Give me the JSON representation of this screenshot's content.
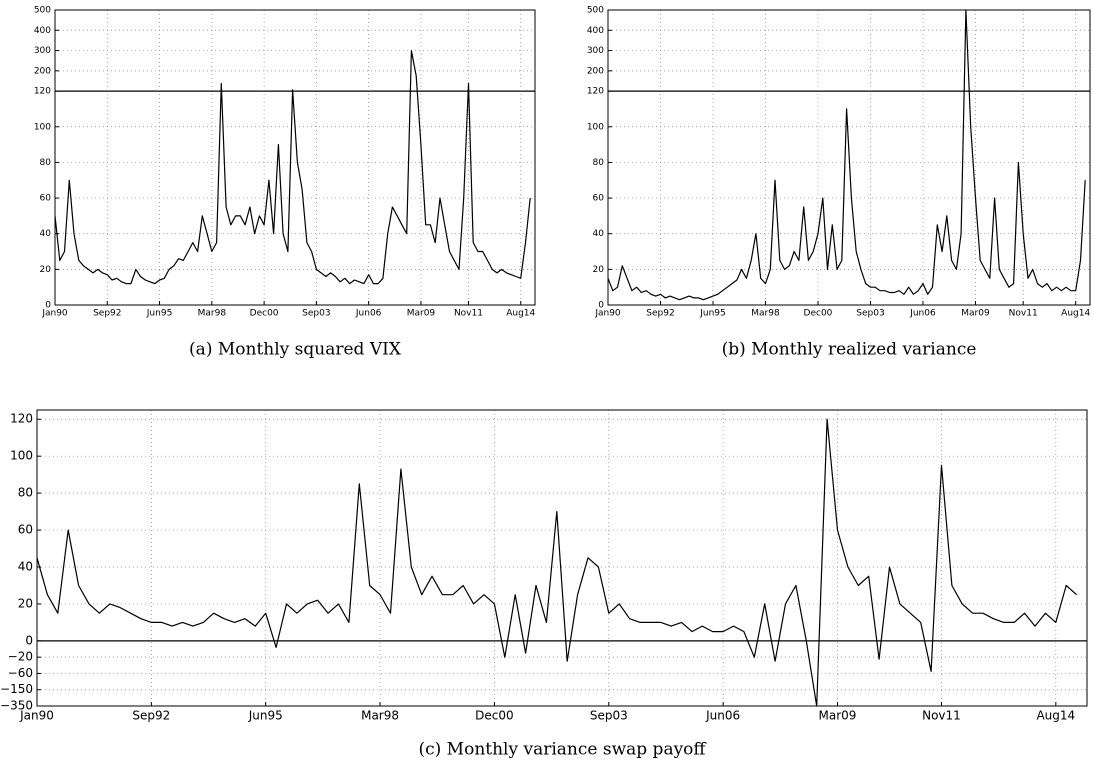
{
  "chart_data": [
    {
      "type": "line",
      "title": "(a) Monthly squared VIX",
      "color": "#000000",
      "grid": true,
      "categories": [
        "Jan90",
        null,
        null,
        null,
        null,
        null,
        null,
        null,
        null,
        null,
        null,
        "Sep92",
        null,
        null,
        null,
        null,
        null,
        null,
        null,
        null,
        null,
        null,
        "Jun95",
        null,
        null,
        null,
        null,
        null,
        null,
        null,
        null,
        null,
        null,
        "Mar98",
        null,
        null,
        null,
        null,
        null,
        null,
        null,
        null,
        null,
        null,
        "Dec00",
        null,
        null,
        null,
        null,
        null,
        null,
        null,
        null,
        null,
        null,
        "Sep03",
        null,
        null,
        null,
        null,
        null,
        null,
        null,
        null,
        null,
        null,
        "Jun06",
        null,
        null,
        null,
        null,
        null,
        null,
        null,
        null,
        null,
        null,
        "Mar09",
        null,
        null,
        null,
        null,
        null,
        null,
        null,
        null,
        null,
        "Nov11",
        null,
        null,
        null,
        null,
        null,
        null,
        null,
        null,
        null,
        null,
        "Aug14",
        null,
        null
      ],
      "values": [
        50,
        25,
        30,
        70,
        40,
        25,
        22,
        20,
        18,
        20,
        18,
        17,
        14,
        15,
        13,
        12,
        12,
        20,
        16,
        14,
        13,
        12,
        14,
        15,
        20,
        22,
        26,
        25,
        30,
        35,
        30,
        50,
        40,
        30,
        35,
        150,
        55,
        45,
        50,
        50,
        45,
        55,
        40,
        50,
        45,
        70,
        40,
        90,
        40,
        30,
        125,
        80,
        65,
        35,
        30,
        20,
        18,
        16,
        18,
        16,
        13,
        15,
        12,
        14,
        13,
        12,
        17,
        12,
        12,
        15,
        40,
        55,
        50,
        45,
        40,
        300,
        180,
        90,
        45,
        45,
        35,
        60,
        45,
        30,
        25,
        20,
        60,
        150,
        35,
        30,
        30,
        25,
        20,
        18,
        20,
        18,
        17,
        16,
        15,
        35,
        60
      ],
      "ylim": [
        0,
        500
      ],
      "yticks": [
        0,
        20,
        40,
        60,
        80,
        100,
        120,
        200,
        300,
        400,
        500
      ],
      "ybreak": 120
    },
    {
      "type": "line",
      "title": "(b) Monthly realized variance",
      "color": "#000000",
      "grid": true,
      "categories": [
        "Jan90",
        null,
        null,
        null,
        null,
        null,
        null,
        null,
        null,
        null,
        null,
        "Sep92",
        null,
        null,
        null,
        null,
        null,
        null,
        null,
        null,
        null,
        null,
        "Jun95",
        null,
        null,
        null,
        null,
        null,
        null,
        null,
        null,
        null,
        null,
        "Mar98",
        null,
        null,
        null,
        null,
        null,
        null,
        null,
        null,
        null,
        null,
        "Dec00",
        null,
        null,
        null,
        null,
        null,
        null,
        null,
        null,
        null,
        null,
        "Sep03",
        null,
        null,
        null,
        null,
        null,
        null,
        null,
        null,
        null,
        null,
        "Jun06",
        null,
        null,
        null,
        null,
        null,
        null,
        null,
        null,
        null,
        null,
        "Mar09",
        null,
        null,
        null,
        null,
        null,
        null,
        null,
        null,
        null,
        "Nov11",
        null,
        null,
        null,
        null,
        null,
        null,
        null,
        null,
        null,
        null,
        "Aug14",
        null,
        null
      ],
      "values": [
        15,
        8,
        10,
        22,
        15,
        8,
        10,
        7,
        8,
        6,
        5,
        6,
        4,
        5,
        4,
        3,
        4,
        5,
        4,
        4,
        3,
        4,
        5,
        6,
        8,
        10,
        12,
        14,
        20,
        15,
        25,
        40,
        15,
        12,
        20,
        70,
        25,
        20,
        22,
        30,
        25,
        55,
        25,
        30,
        40,
        60,
        20,
        45,
        20,
        25,
        110,
        60,
        30,
        20,
        12,
        10,
        10,
        8,
        8,
        7,
        7,
        8,
        6,
        10,
        6,
        8,
        12,
        6,
        10,
        45,
        30,
        50,
        25,
        20,
        40,
        500,
        100,
        60,
        25,
        20,
        15,
        60,
        20,
        15,
        10,
        12,
        80,
        40,
        15,
        20,
        12,
        10,
        12,
        8,
        10,
        8,
        10,
        8,
        8,
        25,
        70
      ],
      "ylim": [
        0,
        500
      ],
      "yticks": [
        0,
        20,
        40,
        60,
        80,
        100,
        120,
        200,
        300,
        400,
        500
      ],
      "ybreak": 120
    },
    {
      "type": "line",
      "title": "(c) Monthly variance swap payoff",
      "color": "#000000",
      "grid": true,
      "categories": [
        "Jan90",
        null,
        null,
        null,
        null,
        null,
        null,
        null,
        null,
        null,
        null,
        "Sep92",
        null,
        null,
        null,
        null,
        null,
        null,
        null,
        null,
        null,
        null,
        "Jun95",
        null,
        null,
        null,
        null,
        null,
        null,
        null,
        null,
        null,
        null,
        "Mar98",
        null,
        null,
        null,
        null,
        null,
        null,
        null,
        null,
        null,
        null,
        "Dec00",
        null,
        null,
        null,
        null,
        null,
        null,
        null,
        null,
        null,
        null,
        "Sep03",
        null,
        null,
        null,
        null,
        null,
        null,
        null,
        null,
        null,
        null,
        "Jun06",
        null,
        null,
        null,
        null,
        null,
        null,
        null,
        null,
        null,
        null,
        "Mar09",
        null,
        null,
        null,
        null,
        null,
        null,
        null,
        null,
        null,
        "Nov11",
        null,
        null,
        null,
        null,
        null,
        null,
        null,
        null,
        null,
        null,
        "Aug14",
        null,
        null
      ],
      "values": [
        45,
        25,
        15,
        60,
        30,
        20,
        15,
        20,
        18,
        15,
        12,
        10,
        10,
        8,
        10,
        8,
        10,
        15,
        12,
        10,
        12,
        8,
        15,
        -8,
        20,
        15,
        20,
        22,
        15,
        20,
        10,
        85,
        30,
        25,
        15,
        93,
        40,
        25,
        35,
        25,
        25,
        30,
        20,
        25,
        20,
        -20,
        25,
        -15,
        30,
        10,
        70,
        -30,
        25,
        45,
        40,
        15,
        20,
        12,
        10,
        10,
        10,
        8,
        10,
        5,
        8,
        5,
        5,
        8,
        5,
        -20,
        20,
        -30,
        20,
        30,
        0,
        -350,
        120,
        60,
        40,
        30,
        35,
        -25,
        40,
        20,
        15,
        10,
        -55,
        95,
        30,
        20,
        15,
        15,
        12,
        10,
        10,
        15,
        8,
        15,
        10,
        30,
        25
      ],
      "ylim": [
        -350,
        125
      ],
      "yticks": [
        {
          "value": -350,
          "label": "−350"
        },
        {
          "value": -150,
          "label": "−150"
        },
        {
          "value": -60,
          "label": "−60"
        },
        {
          "value": -20,
          "label": "−20"
        },
        0,
        20,
        40,
        60,
        80,
        100,
        120
      ],
      "ybreak": 0
    }
  ]
}
